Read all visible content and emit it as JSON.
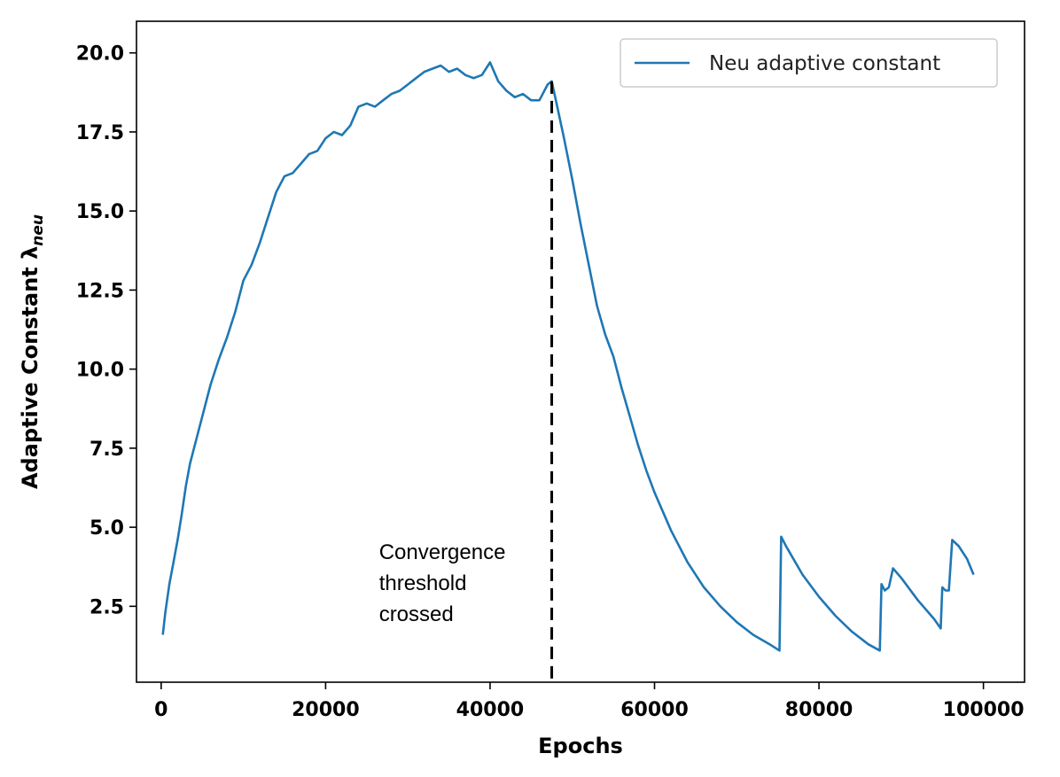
{
  "chart_data": {
    "type": "line",
    "title": "",
    "xlabel": "Epochs",
    "ylabel": "Adaptive Constant λ",
    "ylabel_subscript": "neu",
    "xlim": [
      -3000,
      105000
    ],
    "ylim": [
      0.1,
      21.0
    ],
    "xticks": [
      0,
      20000,
      40000,
      60000,
      80000,
      100000
    ],
    "xtick_labels": [
      "0",
      "20000",
      "40000",
      "60000",
      "80000",
      "100000"
    ],
    "yticks": [
      2.5,
      5.0,
      7.5,
      10.0,
      12.5,
      15.0,
      17.5,
      20.0
    ],
    "ytick_labels": [
      "2.5",
      "5.0",
      "7.5",
      "10.0",
      "12.5",
      "15.0",
      "17.5",
      "20.0"
    ],
    "grid": false,
    "legend_position": "top-right",
    "series": [
      {
        "name": "Neu adaptive constant",
        "color": "#1f77b4",
        "x": [
          200,
          500,
          1000,
          1500,
          2000,
          2500,
          3000,
          3500,
          4000,
          5000,
          6000,
          7000,
          8000,
          9000,
          10000,
          11000,
          12000,
          13000,
          14000,
          15000,
          16000,
          17000,
          18000,
          19000,
          20000,
          21000,
          22000,
          23000,
          24000,
          25000,
          26000,
          27000,
          28000,
          29000,
          30000,
          31000,
          32000,
          33000,
          34000,
          35000,
          36000,
          37000,
          38000,
          39000,
          40000,
          41000,
          42000,
          43000,
          44000,
          45000,
          46000,
          47000,
          47500,
          48000,
          49000,
          50000,
          51000,
          52000,
          53000,
          54000,
          55000,
          56000,
          57000,
          58000,
          59000,
          60000,
          62000,
          64000,
          66000,
          68000,
          70000,
          72000,
          74000,
          75200,
          75400,
          76000,
          78000,
          80000,
          82000,
          84000,
          86000,
          87400,
          87600,
          88000,
          88500,
          89000,
          90000,
          92000,
          94000,
          94800,
          95000,
          95400,
          95800,
          96200,
          97000,
          98000,
          98800
        ],
        "y": [
          1.6,
          2.3,
          3.2,
          3.9,
          4.6,
          5.4,
          6.3,
          7.0,
          7.5,
          8.5,
          9.5,
          10.3,
          11.0,
          11.8,
          12.8,
          13.3,
          14.0,
          14.8,
          15.6,
          16.1,
          16.2,
          16.5,
          16.8,
          16.9,
          17.3,
          17.5,
          17.4,
          17.7,
          18.3,
          18.4,
          18.3,
          18.5,
          18.7,
          18.8,
          19.0,
          19.2,
          19.4,
          19.5,
          19.6,
          19.4,
          19.5,
          19.3,
          19.2,
          19.3,
          19.7,
          19.1,
          18.8,
          18.6,
          18.7,
          18.5,
          18.5,
          19.0,
          19.1,
          18.5,
          17.3,
          16.0,
          14.6,
          13.3,
          12.0,
          11.1,
          10.4,
          9.4,
          8.5,
          7.6,
          6.8,
          6.1,
          4.9,
          3.9,
          3.1,
          2.5,
          2.0,
          1.6,
          1.3,
          1.1,
          4.7,
          4.4,
          3.5,
          2.8,
          2.2,
          1.7,
          1.3,
          1.1,
          3.2,
          3.0,
          3.1,
          3.7,
          3.4,
          2.7,
          2.1,
          1.8,
          3.1,
          3.0,
          3.0,
          4.6,
          4.4,
          4.0,
          3.5
        ]
      }
    ],
    "vline": {
      "x": 47500,
      "style": "dashed",
      "color": "#000000"
    },
    "annotation": {
      "lines": [
        "Convergence",
        "threshold",
        "crossed"
      ],
      "anchor_x": 26500,
      "anchor_y": 2.5
    }
  }
}
